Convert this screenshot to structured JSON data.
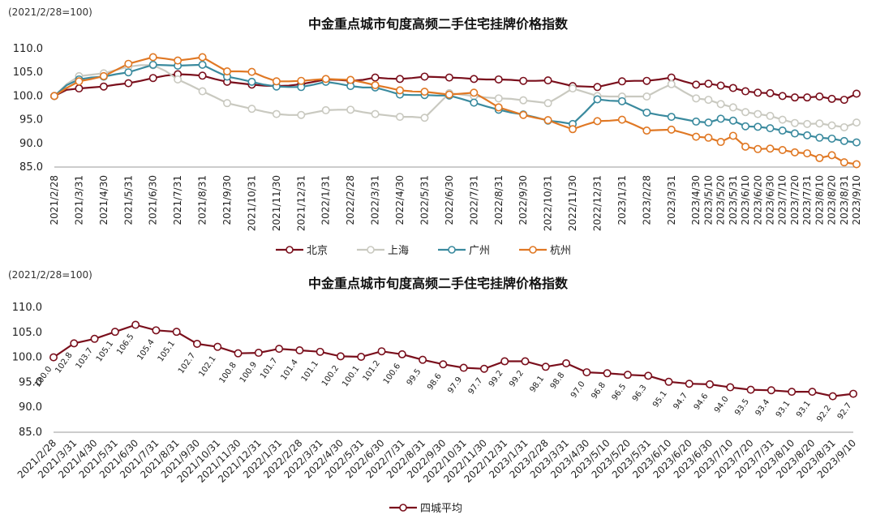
{
  "chart_data": [
    {
      "type": "line",
      "title": "中金重点城市旬度高频二手住宅挂牌价格指数",
      "base_note": "(2021/2/28=100)",
      "ylim": [
        85,
        110
      ],
      "yticks": [
        "85.0",
        "90.0",
        "95.0",
        "100.0",
        "105.0",
        "110.0"
      ],
      "legend_position": "bottom",
      "categories": [
        "2021/2/28",
        "2021/3/15",
        "2021/3/31",
        "2021/4/15",
        "2021/4/30",
        "2021/5/15",
        "2021/5/31",
        "2021/6/15",
        "2021/6/30",
        "2021/7/15",
        "2021/7/31",
        "2021/8/15",
        "2021/8/31",
        "2021/9/15",
        "2021/9/30",
        "2021/10/15",
        "2021/10/31",
        "2021/11/15",
        "2021/11/30",
        "2021/12/15",
        "2021/12/31",
        "2022/1/15",
        "2022/1/31",
        "2022/2/15",
        "2022/2/28",
        "2022/3/15",
        "2022/3/31",
        "2022/4/15",
        "2022/4/30",
        "2022/5/15",
        "2022/5/31",
        "2022/6/15",
        "2022/6/30",
        "2022/7/15",
        "2022/7/31",
        "2022/8/15",
        "2022/8/31",
        "2022/9/15",
        "2022/9/30",
        "2022/10/15",
        "2022/10/31",
        "2022/11/15",
        "2022/11/30",
        "2022/12/15",
        "2022/12/31",
        "2023/1/15",
        "2023/1/31",
        "2023/2/15",
        "2023/2/28",
        "2023/3/15",
        "2023/3/31",
        "2023/4/15",
        "2023/4/30",
        "2023/5/10",
        "2023/5/20",
        "2023/5/31",
        "2023/6/10",
        "2023/6/20",
        "2023/6/30",
        "2023/7/10",
        "2023/7/20",
        "2023/7/31",
        "2023/8/10",
        "2023/8/20",
        "2023/8/31",
        "2023/9/10"
      ],
      "tick_labels": [
        "2021/2/28",
        "2021/3/31",
        "2021/4/30",
        "2021/5/31",
        "2021/6/30",
        "2021/7/31",
        "2021/8/31",
        "2021/9/30",
        "2021/10/31",
        "2021/11/30",
        "2021/12/31",
        "2022/1/31",
        "2022/2/28",
        "2022/3/31",
        "2022/4/30",
        "2022/5/31",
        "2022/6/30",
        "2022/7/31",
        "2022/8/31",
        "2022/9/30",
        "2022/10/31",
        "2022/11/30",
        "2022/12/31",
        "2023/1/31",
        "2023/2/28",
        "2023/3/31",
        "2023/4/30",
        "2023/5/10",
        "2023/5/20",
        "2023/5/31",
        "2023/6/10",
        "2023/6/20",
        "2023/6/30",
        "2023/7/10",
        "2023/7/20",
        "2023/7/31",
        "2023/8/10",
        "2023/8/20",
        "2023/8/31",
        "2023/9/10"
      ],
      "series": [
        {
          "name": "北京",
          "color": "#7a0f1c",
          "values": [
            100.0,
            101.3,
            101.6,
            101.8,
            102.0,
            102.4,
            102.7,
            103.2,
            103.8,
            104.3,
            104.6,
            104.5,
            104.3,
            103.6,
            103.0,
            102.7,
            102.4,
            102.2,
            102.1,
            102.2,
            102.5,
            103.0,
            103.5,
            103.4,
            103.2,
            103.4,
            103.9,
            103.7,
            103.6,
            103.8,
            104.1,
            104.0,
            103.9,
            103.8,
            103.6,
            103.5,
            103.5,
            103.4,
            103.2,
            103.2,
            103.3,
            102.7,
            102.1,
            102.0,
            101.9,
            102.5,
            103.1,
            103.2,
            103.2,
            103.5,
            103.9,
            103.1,
            102.4,
            102.6,
            102.2,
            101.7,
            101.0,
            100.7,
            100.6,
            100.0,
            99.7,
            99.7,
            99.9,
            99.4,
            99.2,
            100.5
          ]
        },
        {
          "name": "上海",
          "color": "#c9c9c0",
          "values": [
            100.0,
            102.5,
            104.2,
            104.5,
            104.8,
            105.5,
            106.2,
            106.5,
            106.5,
            105.3,
            103.5,
            102.3,
            101.0,
            99.8,
            98.5,
            97.9,
            97.3,
            96.7,
            96.2,
            96.0,
            96.0,
            96.5,
            97.0,
            97.1,
            97.1,
            96.6,
            96.2,
            95.9,
            95.6,
            95.6,
            95.4,
            98.0,
            100.6,
            100.3,
            100.0,
            99.7,
            99.5,
            99.4,
            99.1,
            98.8,
            98.5,
            100.0,
            101.6,
            100.8,
            100.0,
            99.9,
            99.9,
            99.9,
            99.9,
            101.3,
            102.5,
            100.9,
            99.5,
            99.2,
            98.3,
            97.6,
            96.6,
            96.2,
            95.8,
            95.0,
            94.3,
            94.1,
            94.2,
            93.8,
            93.4,
            94.4
          ]
        },
        {
          "name": "广州",
          "color": "#3a8a9e",
          "values": [
            100.0,
            102.3,
            103.5,
            103.9,
            104.1,
            104.6,
            105.0,
            105.8,
            106.6,
            106.5,
            106.4,
            106.5,
            106.6,
            105.3,
            104.1,
            103.6,
            103.0,
            102.4,
            102.0,
            101.9,
            101.9,
            102.4,
            103.0,
            102.6,
            102.1,
            101.8,
            101.8,
            101.1,
            100.3,
            100.2,
            100.2,
            100.1,
            100.1,
            99.4,
            98.6,
            97.8,
            97.1,
            96.5,
            96.1,
            95.5,
            94.8,
            94.5,
            94.1,
            96.6,
            99.3,
            99.0,
            98.9,
            97.7,
            96.5,
            96.0,
            95.6,
            95.1,
            94.6,
            94.4,
            95.2,
            94.8,
            93.6,
            93.5,
            93.2,
            92.7,
            92.1,
            91.7,
            91.2,
            91.0,
            90.5,
            90.2
          ]
        },
        {
          "name": "杭州",
          "color": "#e07824",
          "values": [
            100.0,
            101.7,
            103.1,
            103.6,
            104.2,
            105.5,
            106.8,
            107.5,
            108.2,
            107.9,
            107.5,
            107.8,
            108.2,
            106.7,
            105.2,
            105.2,
            105.1,
            104.0,
            103.1,
            103.1,
            103.2,
            103.4,
            103.6,
            103.5,
            103.4,
            102.9,
            102.3,
            101.8,
            101.2,
            101.0,
            100.9,
            100.6,
            100.3,
            100.5,
            100.7,
            99.2,
            97.6,
            96.8,
            96.0,
            95.4,
            94.9,
            93.9,
            93.0,
            93.9,
            94.7,
            94.8,
            95.0,
            93.9,
            92.7,
            92.8,
            92.9,
            92.2,
            91.4,
            91.2,
            90.3,
            91.6,
            89.3,
            88.8,
            88.9,
            88.6,
            88.1,
            87.9,
            86.9,
            87.5,
            86.0,
            85.6
          ]
        }
      ]
    },
    {
      "type": "line",
      "title": "中金重点城市旬度高频二手住宅挂牌价格指数",
      "base_note": "(2021/2/28=100)",
      "ylim": [
        85,
        110
      ],
      "yticks": [
        "85.0",
        "90.0",
        "95.0",
        "100.0",
        "105.0",
        "110.0"
      ],
      "legend_position": "bottom",
      "categories": [
        "2021/2/28",
        "2021/3/31",
        "2021/4/30",
        "2021/5/31",
        "2021/6/30",
        "2021/7/31",
        "2021/8/31",
        "2021/9/30",
        "2021/10/31",
        "2021/11/30",
        "2021/12/31",
        "2022/1/31",
        "2022/2/28",
        "2022/3/31",
        "2022/4/30",
        "2022/5/31",
        "2022/6/30",
        "2022/7/31",
        "2022/8/31",
        "2022/9/30",
        "2022/10/31",
        "2022/11/30",
        "2022/12/31",
        "2023/1/31",
        "2023/2/28",
        "2023/3/31",
        "2023/4/30",
        "2023/5/10",
        "2023/5/20",
        "2023/5/31",
        "2023/6/10",
        "2023/6/20",
        "2023/6/30",
        "2023/7/10",
        "2023/7/20",
        "2023/7/31",
        "2023/8/10",
        "2023/8/20",
        "2023/8/31",
        "2023/9/10"
      ],
      "series": [
        {
          "name": "四城平均",
          "color": "#7a0f1c",
          "values": [
            100.0,
            102.8,
            103.7,
            105.1,
            106.5,
            105.4,
            105.1,
            102.7,
            102.1,
            100.8,
            100.9,
            101.7,
            101.4,
            101.1,
            100.2,
            100.1,
            101.2,
            100.6,
            99.5,
            98.6,
            97.9,
            97.7,
            99.2,
            99.2,
            98.1,
            98.8,
            97.0,
            96.8,
            96.5,
            96.3,
            95.1,
            94.7,
            94.6,
            94.0,
            93.5,
            93.4,
            93.1,
            93.1,
            92.2,
            92.7
          ],
          "data_labels": [
            "100.0",
            "102.8",
            "103.7",
            "105.1",
            "106.5",
            "105.4",
            "105.1",
            "102.7",
            "102.1",
            "100.8",
            "100.9",
            "101.7",
            "101.4",
            "101.1",
            "100.2",
            "100.1",
            "101.2",
            "100.6",
            "99.5",
            "98.6",
            "97.9",
            "97.7",
            "99.2",
            "99.2",
            "98.1",
            "98.8",
            "97.0",
            "96.8",
            "96.5",
            "96.3",
            "95.1",
            "94.7",
            "94.6",
            "94.0",
            "93.5",
            "93.4",
            "93.1",
            "93.1",
            "92.2",
            "92.7"
          ]
        }
      ]
    }
  ]
}
